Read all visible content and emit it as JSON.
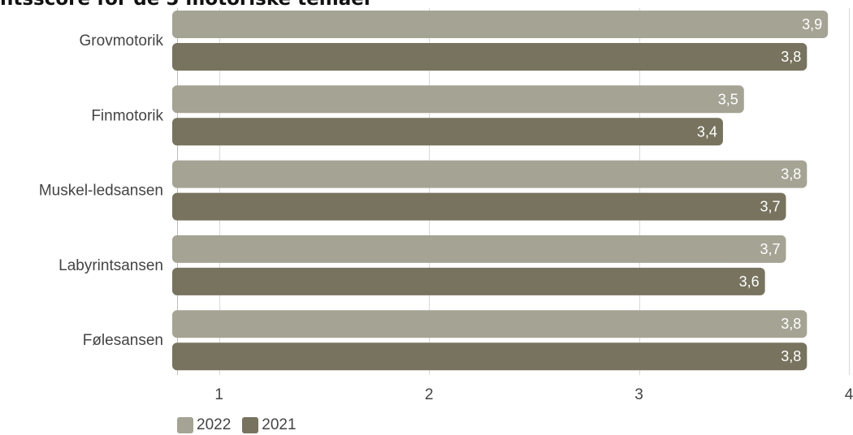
{
  "chart_data": {
    "type": "bar",
    "orientation": "horizontal",
    "title": "ntsscore for de 5 motoriske temaer",
    "categories": [
      "Grovmotorik",
      "Finmotorik",
      "Muskel-ledsansen",
      "Labyrintsansen",
      "Følesansen"
    ],
    "series": [
      {
        "name": "2022",
        "color": "#a5a394",
        "values": [
          3.9,
          3.5,
          3.8,
          3.7,
          3.8
        ],
        "labels": [
          "3,9",
          "3,5",
          "3,8",
          "3,7",
          "3,8"
        ]
      },
      {
        "name": "2021",
        "color": "#77735f",
        "values": [
          3.8,
          3.4,
          3.7,
          3.6,
          3.8
        ],
        "labels": [
          "3,8",
          "3,4",
          "3,7",
          "3,6",
          "3,8"
        ]
      }
    ],
    "x_ticks": [
      1,
      2,
      3,
      4
    ],
    "x_tick_labels": [
      "1",
      "2",
      "3",
      "4"
    ],
    "xlim": [
      0.8,
      4
    ],
    "grid": true,
    "legend_position": "bottom-left"
  }
}
